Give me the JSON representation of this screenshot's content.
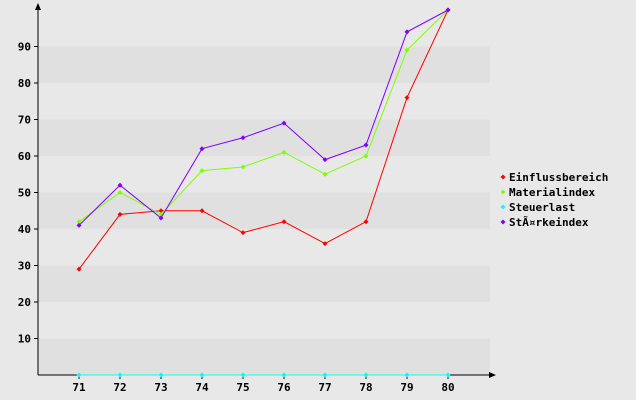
{
  "chart_data": {
    "type": "line",
    "x": [
      71,
      72,
      73,
      74,
      75,
      76,
      77,
      78,
      79,
      80
    ],
    "ylim": [
      0,
      100
    ],
    "yticks": [
      10,
      20,
      30,
      40,
      50,
      60,
      70,
      80,
      90
    ],
    "legend_position": "right",
    "grid": "alternating horizontal bands",
    "series": [
      {
        "name": "Einflussbereich",
        "color": "#ff0000",
        "values": [
          29,
          44,
          45,
          45,
          39,
          42,
          36,
          42,
          76,
          100
        ]
      },
      {
        "name": "Materialindex",
        "color": "#80ff00",
        "values": [
          42,
          50,
          44,
          56,
          57,
          61,
          55,
          60,
          89,
          100
        ]
      },
      {
        "name": "Steuerlast",
        "color": "#00ffff",
        "values": [
          0,
          0,
          0,
          0,
          0,
          0,
          0,
          0,
          0,
          0
        ]
      },
      {
        "name": "StÃ¤rkeindex",
        "color": "#8000ff",
        "values": [
          41,
          52,
          43,
          62,
          65,
          69,
          59,
          63,
          94,
          100
        ]
      }
    ]
  }
}
